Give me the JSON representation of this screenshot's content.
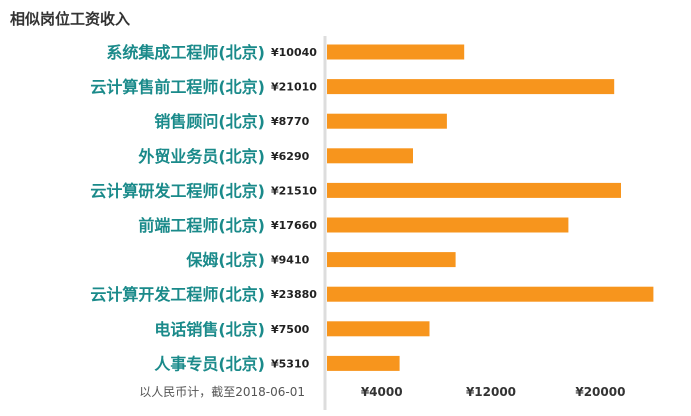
{
  "chart_data": {
    "type": "bar",
    "orientation": "horizontal",
    "title": "相似岗位工资收入",
    "categories": [
      "系统集成工程师(北京)",
      "云计算售前工程师(北京)",
      "销售顾问(北京)",
      "外贸业务员(北京)",
      "云计算研发工程师(北京)",
      "前端工程师(北京)",
      "保姆(北京)",
      "云计算开发工程师(北京)",
      "电话销售(北京)",
      "人事专员(北京)"
    ],
    "values": [
      10040,
      21010,
      8770,
      6290,
      21510,
      17660,
      9410,
      23880,
      7500,
      5310
    ],
    "value_labels": [
      "¥10040",
      "¥21010",
      "¥8770",
      "¥6290",
      "¥21510",
      "¥17660",
      "¥9410",
      "¥23880",
      "¥7500",
      "¥5310"
    ],
    "x_ticks": [
      4000,
      12000,
      20000
    ],
    "x_tick_labels": [
      "¥4000",
      "¥12000",
      "¥20000"
    ],
    "xlim": [
      0,
      24000
    ],
    "note": "以人民币计，截至2018-06-01",
    "colors": {
      "bar": "#f7951d",
      "category_label": "#1a8a8a",
      "axis": "#dddddd"
    }
  }
}
